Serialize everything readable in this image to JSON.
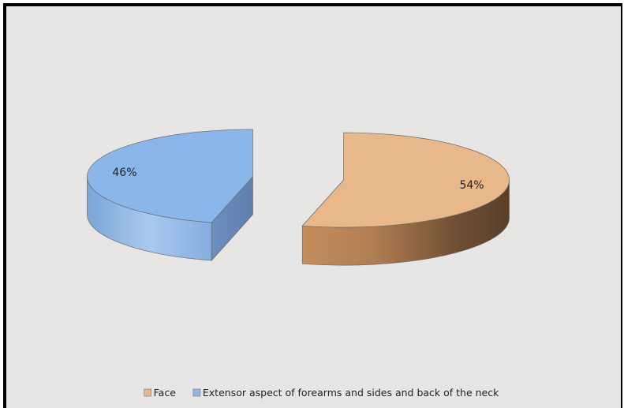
{
  "chart_data": {
    "type": "pie",
    "is_3d": true,
    "exploded": true,
    "title": "",
    "slices": [
      {
        "label": "Face",
        "value": 54,
        "data_label": "54%",
        "color": "#e8b78a"
      },
      {
        "label": "Extensor aspect of forearms and sides and back of the neck",
        "value": 46,
        "data_label": "46%",
        "color": "#8ab6ea"
      }
    ],
    "legend": {
      "position": "bottom",
      "entries": [
        "Face",
        "Extensor aspect of forearms and sides and back of the neck"
      ]
    }
  }
}
